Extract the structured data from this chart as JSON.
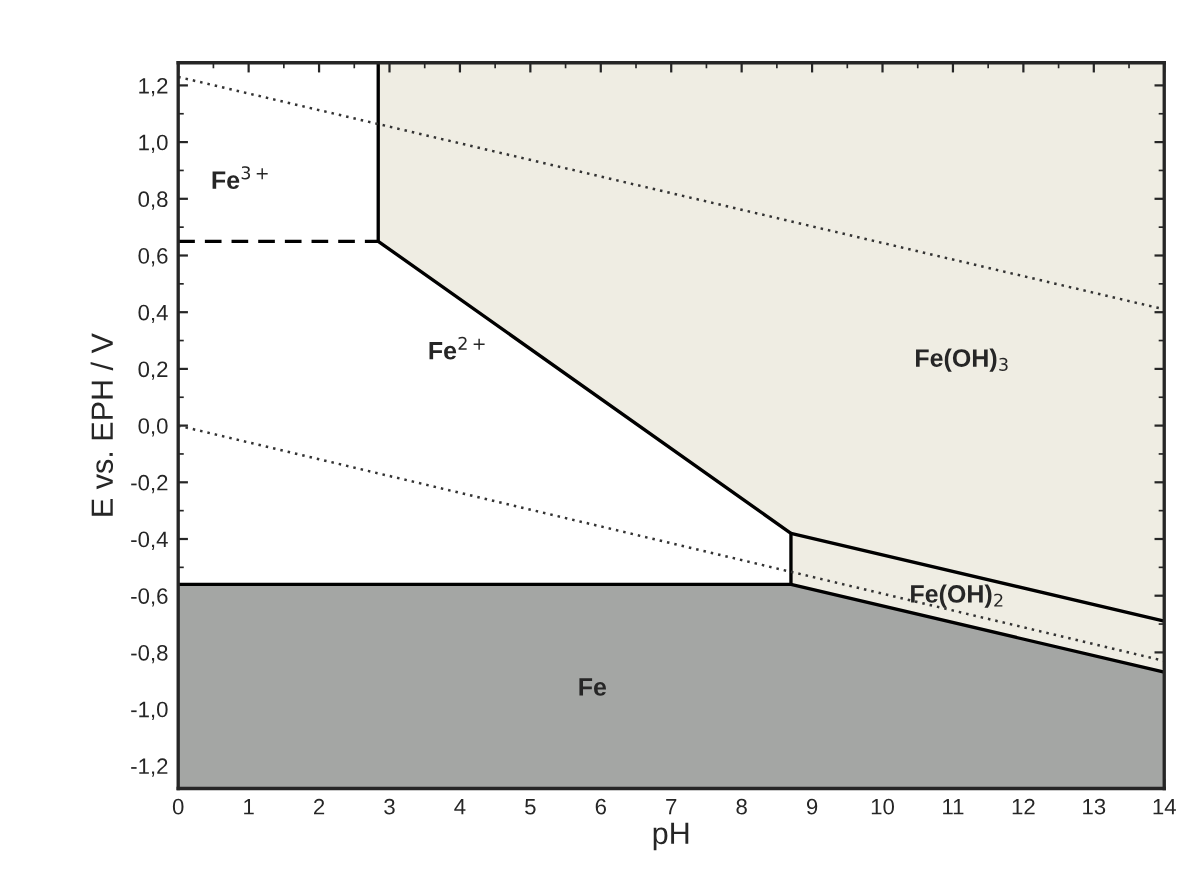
{
  "chart_data": {
    "type": "line",
    "xlabel": "pH",
    "ylabel": "E vs. EPH / V",
    "xlim": [
      0,
      14
    ],
    "ylim": [
      -1.28,
      1.28
    ],
    "xticks": [
      0,
      1,
      2,
      3,
      4,
      5,
      6,
      7,
      8,
      9,
      10,
      11,
      12,
      13,
      14
    ],
    "yticks": [
      {
        "value": -1.2,
        "label": "-1,2"
      },
      {
        "value": -1.0,
        "label": "-1,0"
      },
      {
        "value": -0.8,
        "label": "-0,8"
      },
      {
        "value": -0.6,
        "label": "-0,6"
      },
      {
        "value": -0.4,
        "label": "-0,4"
      },
      {
        "value": -0.2,
        "label": "-0,2"
      },
      {
        "value": 0.0,
        "label": "0,0"
      },
      {
        "value": 0.2,
        "label": "0,2"
      },
      {
        "value": 0.4,
        "label": "0,4"
      },
      {
        "value": 0.6,
        "label": "0,6"
      },
      {
        "value": 0.8,
        "label": "0,8"
      },
      {
        "value": 1.0,
        "label": "1,0"
      },
      {
        "value": 1.2,
        "label": "1,2"
      }
    ],
    "series": [
      {
        "color": "#000000",
        "line_style": "solid",
        "x": [
          0,
          8.7,
          14
        ],
        "values": [
          -0.56,
          -0.56,
          -0.87
        ]
      },
      {
        "color": "#000000",
        "line_style": "dashed",
        "x": [
          0,
          2.84
        ],
        "values": [
          0.65,
          0.65
        ]
      },
      {
        "color": "#000000",
        "line_style": "solid",
        "x": [
          2.84,
          2.84,
          8.7,
          8.7
        ],
        "values": [
          1.28,
          0.65,
          -0.38,
          -0.56
        ]
      },
      {
        "color": "#000000",
        "line_style": "solid",
        "x": [
          8.7,
          14
        ],
        "values": [
          -0.38,
          -0.69
        ]
      },
      {
        "color": "#333333",
        "line_style": "dotted",
        "x": [
          0,
          14
        ],
        "values": [
          1.23,
          0.41
        ]
      },
      {
        "color": "#333333",
        "line_style": "dotted",
        "x": [
          0,
          14
        ],
        "values": [
          0.0,
          -0.83
        ]
      }
    ],
    "annotations": [
      "Fe$^{3+}$",
      "Fe$^{2+}$",
      "Fe(OH)$_{3}$",
      "Fe(OH)$_{2}$",
      "Fe"
    ]
  }
}
